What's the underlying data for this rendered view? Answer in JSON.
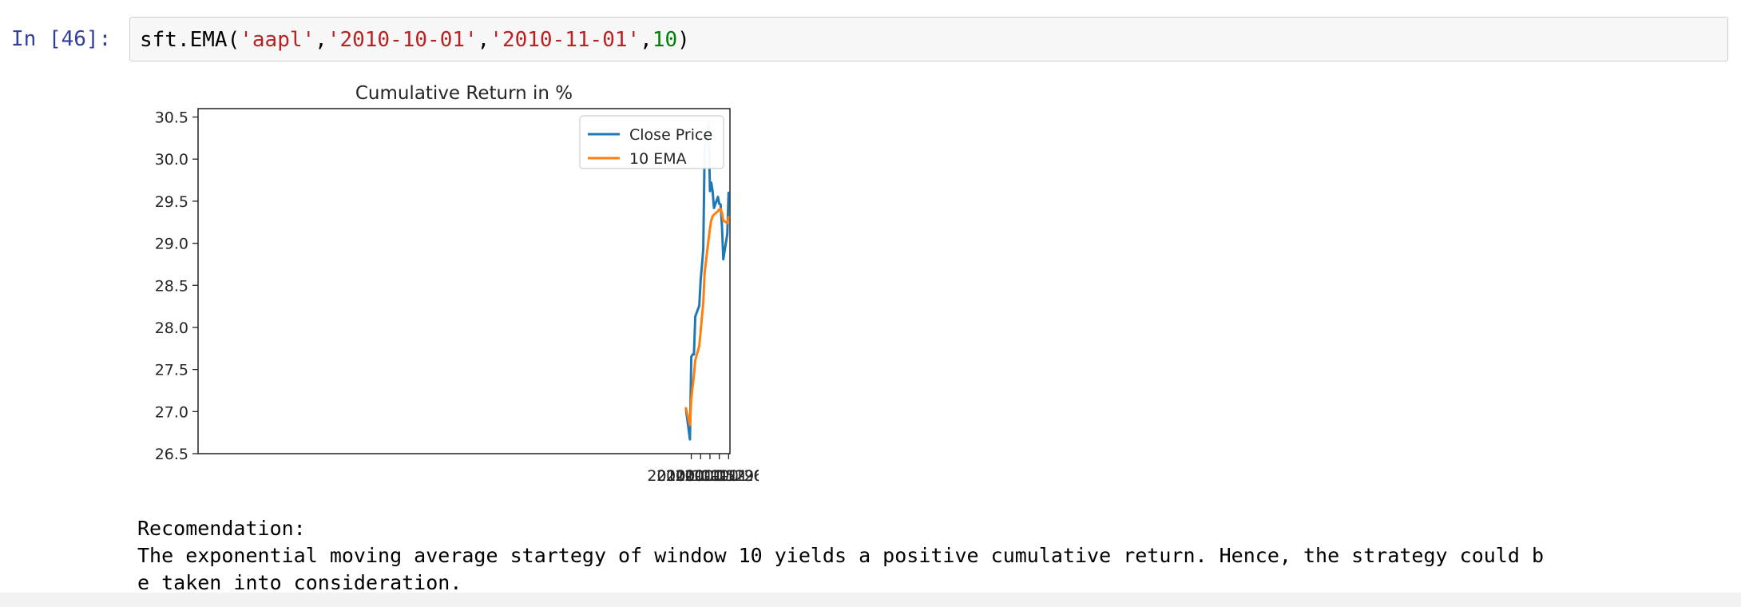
{
  "cell": {
    "prompt": "In [46]:",
    "code": {
      "prefix": "sft.EMA(",
      "arg1": "'aapl'",
      "sep1": ",",
      "arg2": "'2010-10-01'",
      "sep2": ",",
      "arg3": "'2010-11-01'",
      "sep3": ",",
      "arg4": "10",
      "suffix": ")"
    }
  },
  "output": {
    "line1": "Recomendation:",
    "line2": "The exponential moving average startegy of window 10 yields a positive cumulative return. Hence, the strategy could b",
    "line3": "e taken into consideration."
  },
  "chart_data": {
    "type": "line",
    "title": "Cumulative Return in %",
    "xlabel": "",
    "ylabel": "",
    "x_type": "date",
    "xlim": [
      "2009-09-30",
      "2010-11-03"
    ],
    "ylim": [
      26.5,
      30.6
    ],
    "x_ticks": [
      "2010-10-05",
      "2010-10-12",
      "2010-10-19",
      "2010-10-26",
      "2010-11-02"
    ],
    "y_ticks": [
      26.5,
      27.0,
      27.5,
      28.0,
      28.5,
      29.0,
      29.5,
      30.0,
      30.5
    ],
    "x": [
      "2010-10-01",
      "2010-10-04",
      "2010-10-05",
      "2010-10-06",
      "2010-10-07",
      "2010-10-08",
      "2010-10-11",
      "2010-10-12",
      "2010-10-13",
      "2010-10-14",
      "2010-10-15",
      "2010-10-18",
      "2010-10-19",
      "2010-10-20",
      "2010-10-21",
      "2010-10-22",
      "2010-10-25",
      "2010-10-26",
      "2010-10-27",
      "2010-10-28",
      "2010-10-29",
      "2010-11-01",
      "2010-11-02"
    ],
    "series": [
      {
        "name": "Close Price",
        "color": "#1f77b4",
        "values": [
          27.03,
          26.67,
          27.65,
          27.68,
          27.68,
          28.13,
          28.26,
          28.56,
          28.73,
          28.93,
          30.11,
          30.43,
          29.62,
          29.72,
          29.62,
          29.42,
          29.55,
          29.47,
          29.46,
          29.21,
          28.81,
          29.11,
          29.6
        ]
      },
      {
        "name": "10 EMA",
        "color": "#ff7f0e",
        "values": [
          27.04,
          26.84,
          27.15,
          27.3,
          27.43,
          27.61,
          27.78,
          27.95,
          28.12,
          28.29,
          28.65,
          29.05,
          29.18,
          29.27,
          29.32,
          29.34,
          29.38,
          29.4,
          29.41,
          29.36,
          29.27,
          29.24,
          29.31
        ]
      }
    ],
    "legend": "top-right",
    "grid": false
  }
}
